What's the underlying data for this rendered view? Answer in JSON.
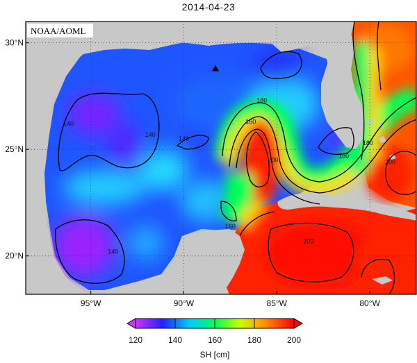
{
  "title": "2014-04-23",
  "credit": "NOAA/AOML",
  "lat_labels": [
    {
      "lat": 30,
      "text": "30°N"
    },
    {
      "lat": 25,
      "text": "25°N"
    },
    {
      "lat": 20,
      "text": "20°N"
    }
  ],
  "lon_labels": [
    {
      "lon": -95,
      "text": "95°W"
    },
    {
      "lon": -90,
      "text": "90°W"
    },
    {
      "lon": -85,
      "text": "85°W"
    },
    {
      "lon": -80,
      "text": "80°W"
    }
  ],
  "contour_labels": [
    {
      "text": "140",
      "lon": -96.2,
      "lat": 26.1
    },
    {
      "text": "140",
      "lon": -91.8,
      "lat": 25.6
    },
    {
      "text": "140",
      "lon": -90.0,
      "lat": 25.4
    },
    {
      "text": "140",
      "lon": -93.8,
      "lat": 20.1
    },
    {
      "text": "160",
      "lon": -86.4,
      "lat": 26.2
    },
    {
      "text": "180",
      "lon": -85.8,
      "lat": 27.2
    },
    {
      "text": "160",
      "lon": -87.5,
      "lat": 21.3
    },
    {
      "text": "200",
      "lon": -85.2,
      "lat": 24.4
    },
    {
      "text": "200",
      "lon": -83.3,
      "lat": 20.6
    },
    {
      "text": "200",
      "lon": -78.9,
      "lat": 24.3
    },
    {
      "text": "180",
      "lon": -80.1,
      "lat": 25.2
    },
    {
      "text": "180",
      "lon": -81.4,
      "lat": 24.6
    }
  ],
  "marker": {
    "lon": -88.3,
    "lat": 28.8,
    "symbol": "triangle"
  },
  "colorbar": {
    "label": "SH [cm]",
    "ticks": [
      "120",
      "140",
      "160",
      "180",
      "200"
    ],
    "min": 120,
    "max": 200,
    "stops": [
      "#cc33ff",
      "#2222ff",
      "#00e5ff",
      "#00ff44",
      "#ffff00",
      "#ff7700",
      "#ff0000"
    ]
  },
  "colors": {
    "land": "#c8c8c8",
    "background": "#ffffff",
    "contour": "#000000"
  },
  "map_extent": {
    "lon_min": -98.5,
    "lon_max": -77.5,
    "lat_min": 18.2,
    "lat_max": 31.0
  }
}
